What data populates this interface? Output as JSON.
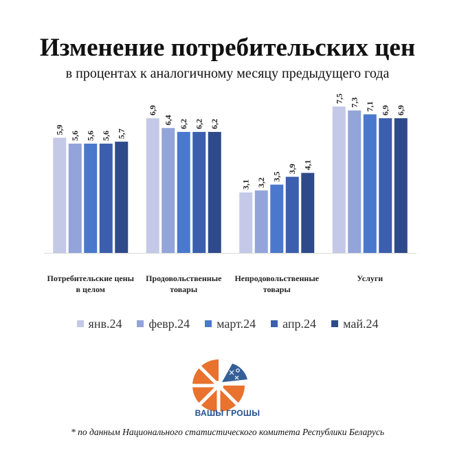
{
  "header": {
    "title": "Изменение потребительских цен",
    "subtitle": "в процентах к аналогичному месяцу предыдущего года"
  },
  "chart_data": {
    "type": "bar",
    "title": "Изменение потребительских цен",
    "subtitle": "в процентах к аналогичному месяцу предыдущего года",
    "categories": [
      [
        "Потребительские цены",
        "в целом"
      ],
      [
        "Продовольственные",
        "товары"
      ],
      [
        "Непродовольственные",
        "товары"
      ],
      [
        "Услуги"
      ]
    ],
    "series": [
      {
        "name": "янв.24",
        "color": "#c3c9e6",
        "values": [
          5.9,
          6.9,
          3.1,
          7.5
        ],
        "labels": [
          "5,9",
          "6,9",
          "3,1",
          "7,5"
        ]
      },
      {
        "name": "февр.24",
        "color": "#92a4d9",
        "values": [
          5.6,
          6.4,
          3.2,
          7.3
        ],
        "labels": [
          "5,6",
          "6,4",
          "3,2",
          "7,3"
        ]
      },
      {
        "name": "март.24",
        "color": "#4a78cc",
        "values": [
          5.6,
          6.2,
          3.5,
          7.1
        ],
        "labels": [
          "5,6",
          "6,2",
          "3,5",
          "7,1"
        ]
      },
      {
        "name": "апр.24",
        "color": "#3b5fae",
        "values": [
          5.6,
          6.2,
          3.9,
          6.9
        ],
        "labels": [
          "5,6",
          "6,2",
          "3,9",
          "6,9"
        ]
      },
      {
        "name": "май.24",
        "color": "#2e4a8a",
        "values": [
          5.7,
          6.2,
          4.1,
          6.9
        ],
        "labels": [
          "5,7",
          "6,2",
          "4,1",
          "6,9"
        ]
      }
    ],
    "ylim": [
      0,
      8
    ],
    "grid": false,
    "legend": "bottom"
  },
  "logo": {
    "text": "ВАШЫ ГРОШЫ",
    "accent_color": "#e8722e",
    "brand_color": "#1f4e8c"
  },
  "footnote": "* по данным Национального статистического комитета Республики Беларусь"
}
